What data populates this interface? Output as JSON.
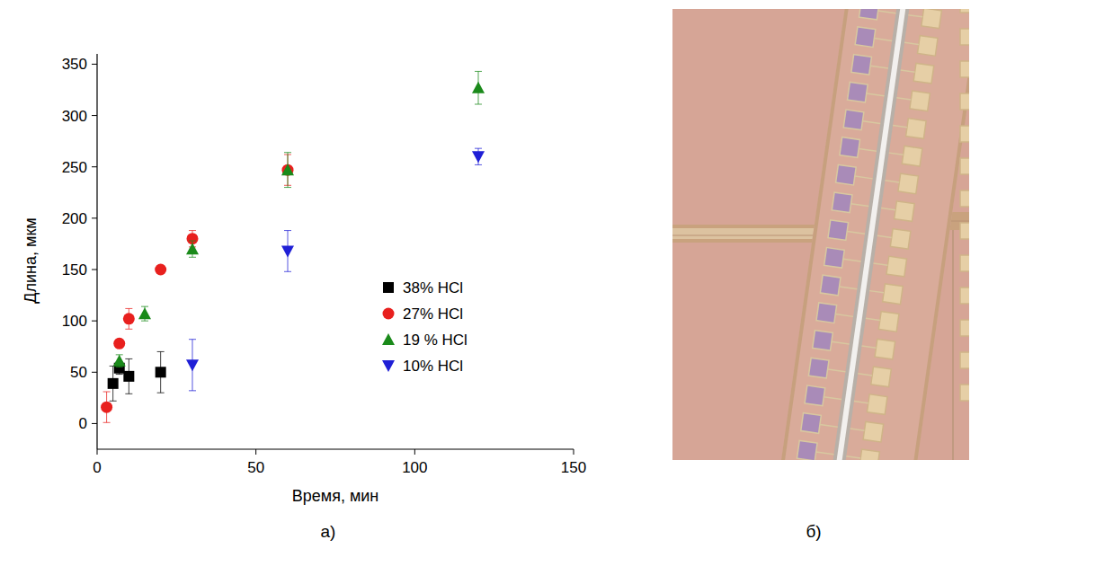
{
  "chart_data": {
    "type": "scatter",
    "x_label": "Время, мин",
    "y_label": "Длина, мкм",
    "xlim": [
      0,
      150
    ],
    "xticks": [
      0,
      50,
      100,
      150
    ],
    "ylim": [
      -25,
      360
    ],
    "yticks": [
      0,
      50,
      100,
      150,
      200,
      250,
      300,
      350
    ],
    "grid": false,
    "legend": "center right",
    "series": [
      {
        "name": "38% HCl",
        "color": "#000000",
        "marker": "square",
        "x": [
          5,
          7,
          10,
          20
        ],
        "values": [
          39,
          54,
          46,
          50
        ],
        "errors": [
          17,
          6,
          17,
          20
        ]
      },
      {
        "name": "27% HCl",
        "color": "#e8201e",
        "marker": "circle",
        "x": [
          3,
          7,
          10,
          20,
          30,
          60
        ],
        "values": [
          16,
          78,
          102,
          150,
          180,
          247
        ],
        "errors": [
          15,
          4,
          10,
          3,
          8,
          15
        ]
      },
      {
        "name": "19 % HCl",
        "color": "#1a8a1a",
        "marker": "triangle",
        "x": [
          7,
          15,
          30,
          60,
          120
        ],
        "values": [
          61,
          107,
          170,
          247,
          327
        ],
        "errors": [
          6,
          7,
          8,
          17,
          16
        ]
      },
      {
        "name": "10% HCl",
        "color": "#1f1fd6",
        "marker": "triangle-down",
        "x": [
          30,
          60,
          120
        ],
        "values": [
          57,
          168,
          260
        ],
        "errors": [
          25,
          20,
          8
        ]
      }
    ]
  },
  "panel_labels": [
    "а)",
    "б)"
  ]
}
